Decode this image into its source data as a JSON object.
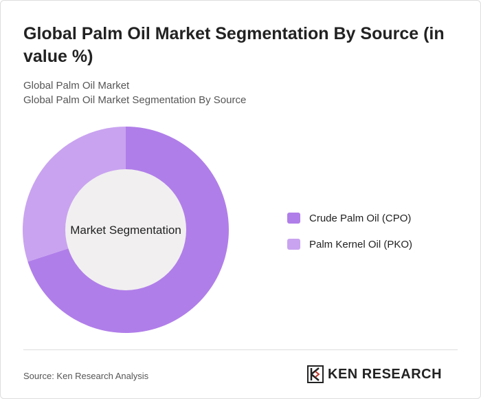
{
  "chart_data": {
    "type": "donut",
    "title": "Global Palm Oil Market Segmentation By Source (in value %)",
    "subtitle": [
      "Global Palm Oil Market",
      "Global Palm Oil Market Segmentation By Source"
    ],
    "center_label": "Market Segmentation",
    "categories": [
      "Crude Palm Oil (CPO)",
      "Palm Kernel Oil (PKO)"
    ],
    "values": [
      70,
      30
    ],
    "colors": [
      "#b07ee9",
      "#c9a3f0"
    ],
    "source": "Source: Ken Research Analysis",
    "brand": "KEN RESEARCH"
  }
}
